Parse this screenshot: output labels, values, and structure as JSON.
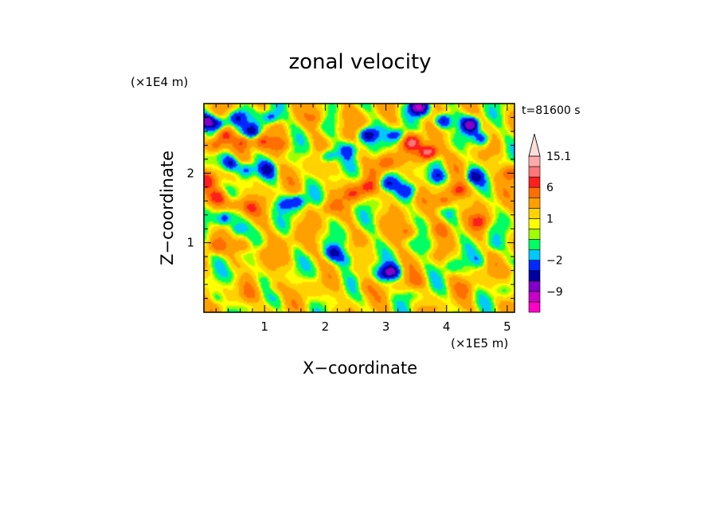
{
  "chart_data": {
    "type": "heatmap",
    "title": "zonal velocity",
    "xlabel": "X−coordinate",
    "ylabel": "Z−coordinate",
    "x_unit": "(×1E5 m)",
    "y_unit": "(×1E4 m)",
    "time_label": "t=81600 s",
    "xlim": [
      0,
      5.12
    ],
    "ylim": [
      0,
      3.0
    ],
    "x_ticks": [
      1,
      2,
      3,
      4,
      5
    ],
    "y_ticks": [
      1,
      2
    ],
    "colorbar": {
      "labels": [
        {
          "value": 15.1,
          "text": "15.1"
        },
        {
          "value": 6,
          "text": "6"
        },
        {
          "value": 1,
          "text": "1"
        },
        {
          "value": -2,
          "text": "−2"
        },
        {
          "value": -9,
          "text": "−9"
        }
      ],
      "levels": [
        {
          "min": -15,
          "max": -12,
          "color": "#ff00c8"
        },
        {
          "min": -12,
          "max": -9,
          "color": "#c800c8"
        },
        {
          "min": -9,
          "max": -6,
          "color": "#8200c8"
        },
        {
          "min": -6,
          "max": -4,
          "color": "#0000a0"
        },
        {
          "min": -4,
          "max": -2,
          "color": "#0028ff"
        },
        {
          "min": -2,
          "max": -1,
          "color": "#00c8ff"
        },
        {
          "min": -1,
          "max": 0,
          "color": "#00ff64"
        },
        {
          "min": 0,
          "max": 0.5,
          "color": "#a0ff00"
        },
        {
          "min": 0.5,
          "max": 1,
          "color": "#ffff00"
        },
        {
          "min": 1,
          "max": 2,
          "color": "#ffd200"
        },
        {
          "min": 2,
          "max": 4,
          "color": "#ffa000"
        },
        {
          "min": 4,
          "max": 6,
          "color": "#ff6e00"
        },
        {
          "min": 6,
          "max": 9,
          "color": "#ff1e1e"
        },
        {
          "min": 9,
          "max": 12,
          "color": "#ff7878"
        },
        {
          "min": 12,
          "max": 15.1,
          "color": "#ffaaaa"
        }
      ],
      "extend_max_color": "#ffdcdc"
    },
    "features": [
      {
        "x": 0.05,
        "z": 2.75,
        "u": -8
      },
      {
        "x": 0.25,
        "z": 2.7,
        "u": -6
      },
      {
        "x": 0.55,
        "z": 2.8,
        "u": -5
      },
      {
        "x": 0.8,
        "z": 2.6,
        "u": -6
      },
      {
        "x": 1.1,
        "z": 2.8,
        "u": -5
      },
      {
        "x": 0.45,
        "z": 2.15,
        "u": -6
      },
      {
        "x": 0.7,
        "z": 2.05,
        "u": -5
      },
      {
        "x": 1.05,
        "z": 2.05,
        "u": -4
      },
      {
        "x": 0.35,
        "z": 1.35,
        "u": -5
      },
      {
        "x": 0.55,
        "z": 1.2,
        "u": -4
      },
      {
        "x": 1.3,
        "z": 1.55,
        "u": -3
      },
      {
        "x": 1.55,
        "z": 1.6,
        "u": -5
      },
      {
        "x": 2.05,
        "z": 2.25,
        "u": -5
      },
      {
        "x": 2.4,
        "z": 2.35,
        "u": -4
      },
      {
        "x": 2.7,
        "z": 2.55,
        "u": -7
      },
      {
        "x": 3.2,
        "z": 2.55,
        "u": -5
      },
      {
        "x": 3.55,
        "z": 2.95,
        "u": -10
      },
      {
        "x": 3.95,
        "z": 2.75,
        "u": -7
      },
      {
        "x": 4.4,
        "z": 2.7,
        "u": -8
      },
      {
        "x": 4.6,
        "z": 2.5,
        "u": -5
      },
      {
        "x": 3.0,
        "z": 1.85,
        "u": -5
      },
      {
        "x": 3.4,
        "z": 1.75,
        "u": -4
      },
      {
        "x": 3.85,
        "z": 1.95,
        "u": -5
      },
      {
        "x": 4.45,
        "z": 1.95,
        "u": -5
      },
      {
        "x": 2.15,
        "z": 0.85,
        "u": -5
      },
      {
        "x": 2.35,
        "z": 0.75,
        "u": -3
      },
      {
        "x": 2.65,
        "z": 0.9,
        "u": -2
      },
      {
        "x": 3.1,
        "z": 0.58,
        "u": -7
      },
      {
        "x": 2.95,
        "z": 0.55,
        "u": -3
      },
      {
        "x": 3.7,
        "z": 0.95,
        "u": -2
      },
      {
        "x": 4.05,
        "z": 0.65,
        "u": -2
      },
      {
        "x": 4.55,
        "z": 0.75,
        "u": -2
      },
      {
        "x": 4.75,
        "z": 0.95,
        "u": -2
      },
      {
        "x": 0.6,
        "z": 0.55,
        "u": -2
      },
      {
        "x": 0.2,
        "z": 0.2,
        "u": -2
      },
      {
        "x": 3.4,
        "z": 0.25,
        "u": -1
      },
      {
        "x": 4.95,
        "z": 0.3,
        "u": -1
      },
      {
        "x": 1.9,
        "z": 0.6,
        "u": -1
      },
      {
        "x": 3.7,
        "z": 2.3,
        "u": 12
      },
      {
        "x": 3.45,
        "z": 2.45,
        "u": 8
      },
      {
        "x": 3.0,
        "z": 2.15,
        "u": 5
      },
      {
        "x": 2.7,
        "z": 1.8,
        "u": 6
      },
      {
        "x": 2.45,
        "z": 1.7,
        "u": 5
      },
      {
        "x": 3.95,
        "z": 1.6,
        "u": 5
      },
      {
        "x": 4.2,
        "z": 1.75,
        "u": 6
      },
      {
        "x": 4.55,
        "z": 1.3,
        "u": 5
      },
      {
        "x": 5.05,
        "z": 2.0,
        "u": 5
      },
      {
        "x": 0.2,
        "z": 2.4,
        "u": 6
      },
      {
        "x": 0.35,
        "z": 2.55,
        "u": 5
      },
      {
        "x": 0.65,
        "z": 2.45,
        "u": 5
      },
      {
        "x": 0.95,
        "z": 2.45,
        "u": 4
      },
      {
        "x": 1.25,
        "z": 2.4,
        "u": 4
      },
      {
        "x": 0.05,
        "z": 1.9,
        "u": 5
      },
      {
        "x": 0.25,
        "z": 1.65,
        "u": 6
      },
      {
        "x": 0.5,
        "z": 1.55,
        "u": 4
      },
      {
        "x": 0.75,
        "z": 1.5,
        "u": 4
      },
      {
        "x": 0.2,
        "z": 0.95,
        "u": 4
      },
      {
        "x": 0.65,
        "z": 0.95,
        "u": 3
      },
      {
        "x": 1.0,
        "z": 0.85,
        "u": 2
      },
      {
        "x": 0.75,
        "z": 0.25,
        "u": 3
      },
      {
        "x": 1.15,
        "z": 0.35,
        "u": 2
      },
      {
        "x": 3.35,
        "z": 1.15,
        "u": 4
      },
      {
        "x": 3.9,
        "z": 1.2,
        "u": 3
      },
      {
        "x": 3.5,
        "z": 0.45,
        "u": 3
      },
      {
        "x": 4.3,
        "z": 0.35,
        "u": 2
      },
      {
        "x": 1.85,
        "z": 2.8,
        "u": 3
      },
      {
        "x": 2.35,
        "z": 2.85,
        "u": 2
      },
      {
        "x": 2.05,
        "z": 1.5,
        "u": 3
      },
      {
        "x": 2.65,
        "z": 0.35,
        "u": 2
      },
      {
        "x": 1.45,
        "z": 1.05,
        "u": 1.5
      },
      {
        "x": 1.7,
        "z": 0.9,
        "u": 0.8
      },
      {
        "x": 5.05,
        "z": 0.6,
        "u": 2
      }
    ]
  }
}
